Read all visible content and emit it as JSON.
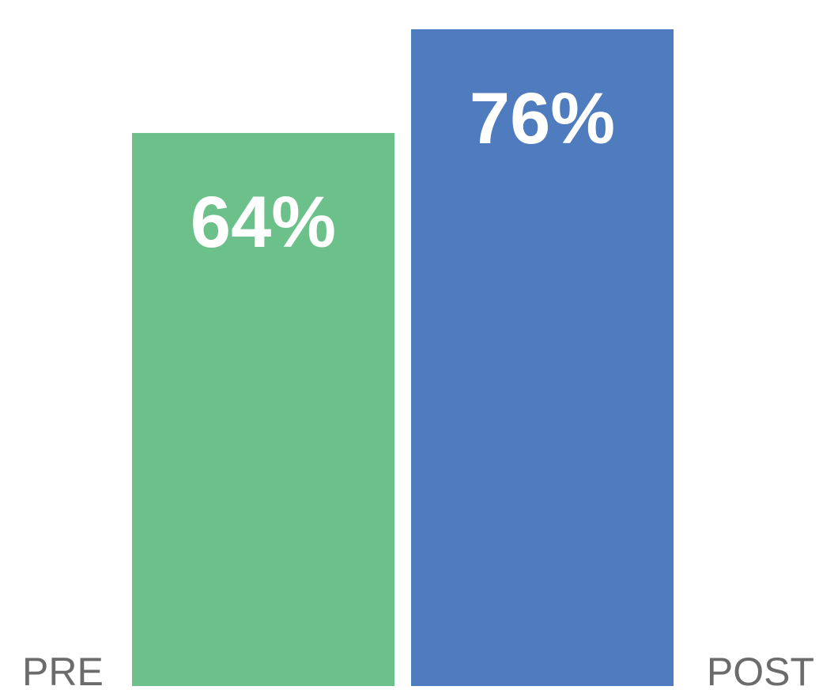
{
  "chart_data": {
    "type": "bar",
    "categories": [
      "PRE",
      "POST"
    ],
    "values": [
      64,
      76
    ],
    "value_labels": [
      "64%",
      "76%"
    ],
    "colors": [
      "#6cc18a",
      "#4f7bbf"
    ]
  }
}
